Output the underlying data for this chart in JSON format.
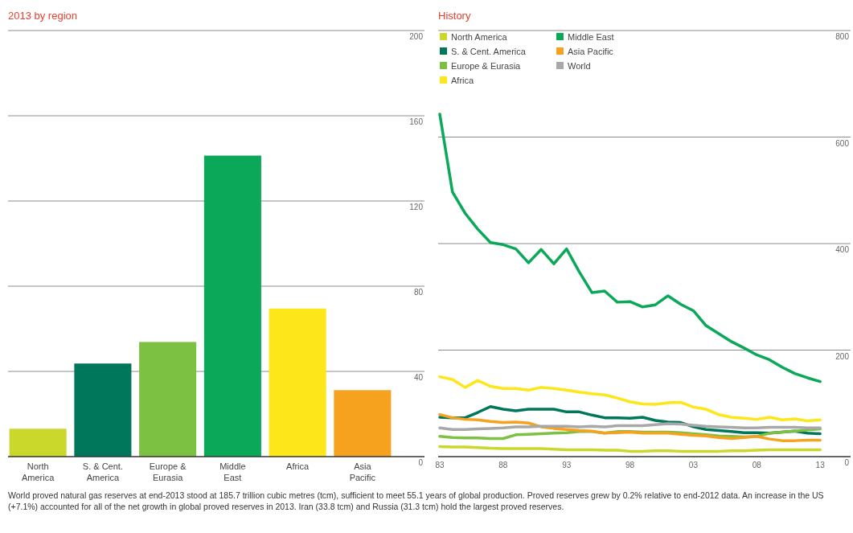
{
  "chart_data": [
    {
      "type": "bar",
      "title": "2013 by region",
      "categories": [
        "North America",
        "S. & Cent. America",
        "Europe & Eurasia",
        "Middle East",
        "Africa",
        "Asia Pacific"
      ],
      "values": [
        13.1,
        43.7,
        53.8,
        141.3,
        69.5,
        31.2
      ],
      "colors": [
        "#c9d82b",
        "#00775a",
        "#7dc142",
        "#0aa858",
        "#fde619",
        "#f6a21e"
      ],
      "ylim": [
        0,
        200
      ],
      "yticks": [
        0,
        40,
        80,
        120,
        160,
        200
      ],
      "grid": "y",
      "annotations": [
        "World proved natural gas reserves at end-2013 stood at 185.7 trillion cubic metres (tcm), sufficient to meet 55.1 years of global production. Proved reserves grew by 0.2% relative to end-2012 data. An increase in the US (+7.1%) accounted for all of the net growth in global proved reserves in 2013. Iran (33.8 tcm) and Russia (31.3 tcm) hold the largest proved reserves."
      ]
    },
    {
      "type": "line",
      "title": "History",
      "x": [
        1983,
        1984,
        1985,
        1986,
        1987,
        1988,
        1989,
        1990,
        1991,
        1992,
        1993,
        1994,
        1995,
        1996,
        1997,
        1998,
        1999,
        2000,
        2001,
        2002,
        2003,
        2004,
        2005,
        2006,
        2007,
        2008,
        2009,
        2010,
        2011,
        2012,
        2013
      ],
      "xlim": [
        1983,
        2015.4
      ],
      "xticks": [
        {
          "value": 1983,
          "label": "83"
        },
        {
          "value": 1988,
          "label": "88"
        },
        {
          "value": 1993,
          "label": "93"
        },
        {
          "value": 1998,
          "label": "98"
        },
        {
          "value": 2003,
          "label": "03"
        },
        {
          "value": 2008,
          "label": "08"
        },
        {
          "value": 2013,
          "label": "13"
        }
      ],
      "ylim": [
        0,
        800
      ],
      "yticks": [
        0,
        200,
        400,
        600,
        800
      ],
      "grid": "y",
      "legend": "top left",
      "marker": "none",
      "line_style": "solid",
      "series": [
        {
          "name": "North America",
          "color": "#c9d82b",
          "values": [
            19,
            18,
            18,
            17,
            16,
            15,
            15,
            15,
            15,
            14,
            13,
            13,
            13,
            12,
            12,
            10,
            10,
            11,
            11,
            10,
            10,
            10,
            10,
            11,
            11,
            12,
            13,
            13,
            13,
            13,
            13
          ]
        },
        {
          "name": "S. & Cent. America",
          "color": "#00775a",
          "values": [
            74,
            73,
            73,
            83,
            94,
            89,
            86,
            89,
            89,
            89,
            84,
            84,
            78,
            73,
            73,
            72,
            74,
            68,
            65,
            64,
            56,
            51,
            49,
            47,
            45,
            45,
            44,
            46,
            48,
            44,
            43
          ]
        },
        {
          "name": "Europe & Eurasia",
          "color": "#7dc142",
          "values": [
            38,
            36,
            35,
            35,
            34,
            34,
            41,
            42,
            43,
            44,
            45,
            47,
            47,
            44,
            47,
            47,
            46,
            46,
            46,
            45,
            43,
            41,
            39,
            38,
            37,
            38,
            44,
            46,
            48,
            50,
            52
          ]
        },
        {
          "name": "Africa",
          "color": "#fde619",
          "values": [
            150,
            145,
            130,
            143,
            132,
            128,
            128,
            125,
            130,
            128,
            125,
            121,
            118,
            116,
            110,
            103,
            99,
            98,
            101,
            102,
            93,
            89,
            79,
            74,
            72,
            70,
            74,
            69,
            71,
            67,
            69
          ]
        },
        {
          "name": "Middle East",
          "color": "#0aa858",
          "values": [
            643,
            497,
            457,
            427,
            402,
            398,
            390,
            364,
            389,
            362,
            390,
            347,
            308,
            311,
            290,
            291,
            281,
            285,
            302,
            286,
            274,
            246,
            231,
            216,
            204,
            191,
            182,
            168,
            156,
            148,
            141
          ]
        },
        {
          "name": "Asia Pacific",
          "color": "#f6a21e",
          "values": [
            79,
            73,
            70,
            69,
            66,
            64,
            65,
            63,
            56,
            53,
            51,
            49,
            48,
            44,
            45,
            46,
            44,
            44,
            44,
            42,
            40,
            39,
            36,
            34,
            36,
            38,
            33,
            30,
            30,
            31,
            31
          ]
        },
        {
          "name": "World",
          "color": "#a8a8a8",
          "values": [
            54,
            51,
            51,
            52,
            53,
            54,
            56,
            56,
            57,
            57,
            57,
            56,
            57,
            56,
            58,
            58,
            58,
            60,
            62,
            61,
            59,
            57,
            56,
            55,
            54,
            54,
            55,
            55,
            55,
            54,
            54
          ]
        }
      ]
    }
  ]
}
